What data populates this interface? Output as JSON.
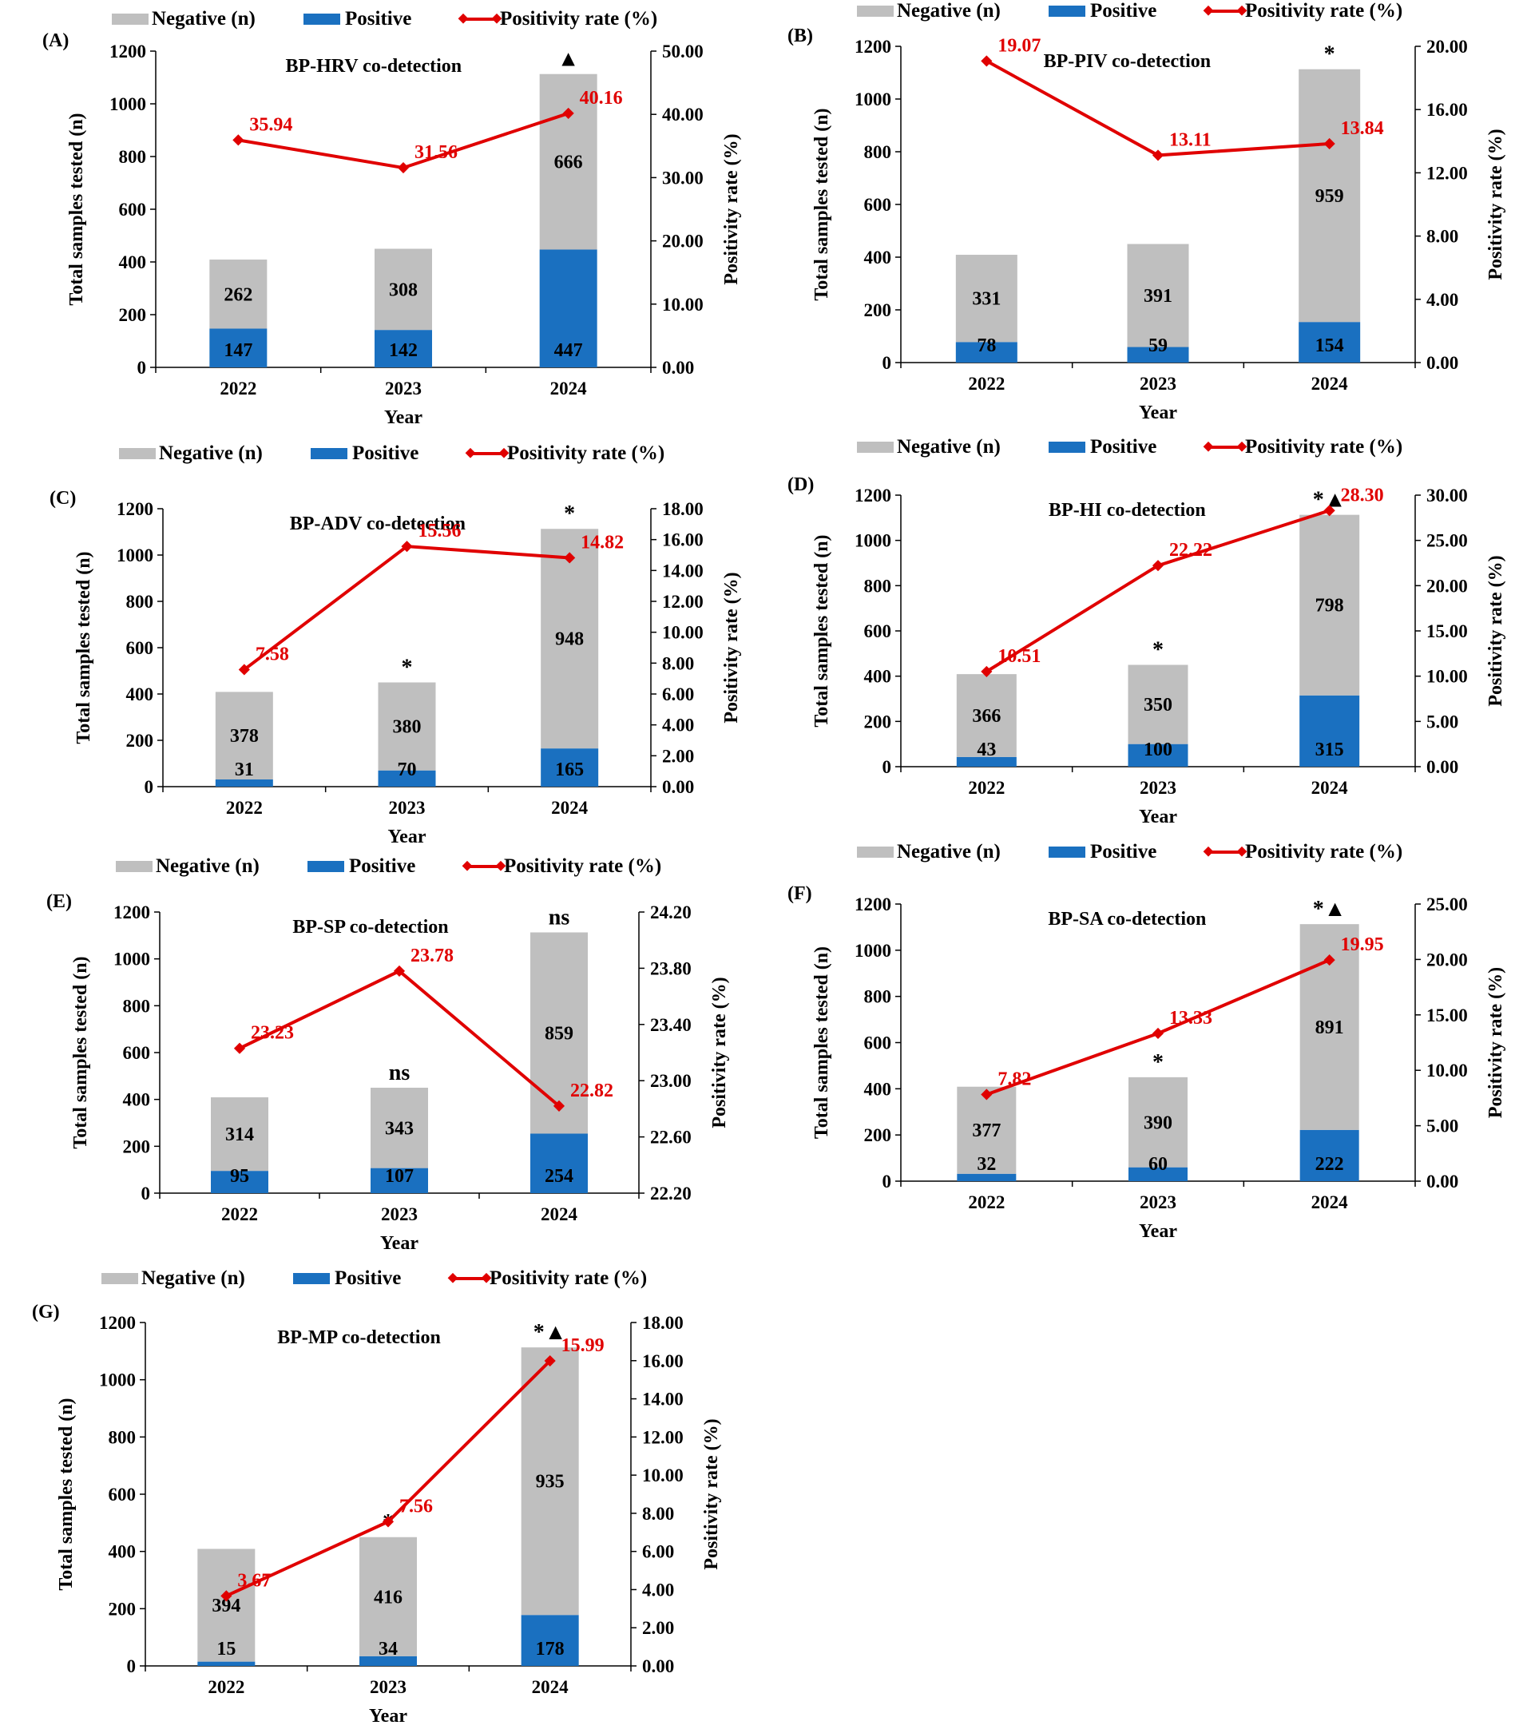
{
  "chart_data": [
    {
      "type": "bar",
      "panel": "(A)",
      "title": "BP-HRV co-detection",
      "legend": {
        "negative": "Negative (n)",
        "positive": "Positive",
        "rate": "Positivity rate (%)"
      },
      "xlabel": "Year",
      "ylabel": "Total samples tested (n)",
      "y2label": "Positivity rate (%)",
      "categories": [
        "2022",
        "2023",
        "2024"
      ],
      "series": [
        {
          "name": "Positive",
          "values": [
            147,
            142,
            447
          ],
          "color": "#1a70c0"
        },
        {
          "name": "Negative (n)",
          "values": [
            262,
            308,
            666
          ],
          "color": "#bfbfbf"
        },
        {
          "name": "Positivity rate (%)",
          "values": [
            35.94,
            31.56,
            40.16
          ],
          "labels": [
            "35.94",
            "31.56",
            "40.16"
          ],
          "color": "#e00000"
        }
      ],
      "ylim": [
        0,
        1200
      ],
      "yticks": [
        "0",
        "200",
        "400",
        "600",
        "800",
        "1000",
        "1200"
      ],
      "y2lim": [
        0,
        50
      ],
      "y2ticks": [
        "0.00",
        "10.00",
        "20.00",
        "30.00",
        "40.00",
        "50.00"
      ],
      "annotations": [
        "",
        "",
        "▲"
      ]
    },
    {
      "type": "bar",
      "panel": "(B)",
      "title": "BP-PIV co-detection",
      "legend": {
        "negative": "Negative (n)",
        "positive": "Positive",
        "rate": "Positivity rate (%)"
      },
      "xlabel": "Year",
      "ylabel": "Total samples tested (n)",
      "y2label": "Positivity rate (%)",
      "categories": [
        "2022",
        "2023",
        "2024"
      ],
      "series": [
        {
          "name": "Positive",
          "values": [
            78,
            59,
            154
          ],
          "color": "#1a70c0"
        },
        {
          "name": "Negative (n)",
          "values": [
            331,
            391,
            959
          ],
          "color": "#bfbfbf"
        },
        {
          "name": "Positivity rate (%)",
          "values": [
            19.07,
            13.11,
            13.84
          ],
          "labels": [
            "19.07",
            "13.11",
            "13.84"
          ],
          "color": "#e00000"
        }
      ],
      "ylim": [
        0,
        1200
      ],
      "yticks": [
        "0",
        "200",
        "400",
        "600",
        "800",
        "1000",
        "1200"
      ],
      "y2lim": [
        0,
        20
      ],
      "y2ticks": [
        "0.00",
        "4.00",
        "8.00",
        "12.00",
        "16.00",
        "20.00"
      ],
      "annotations": [
        "",
        "",
        "*"
      ]
    },
    {
      "type": "bar",
      "panel": "(C)",
      "title": "BP-ADV co-detection",
      "legend": {
        "negative": "Negative (n)",
        "positive": "Positive",
        "rate": "Positivity rate (%)"
      },
      "xlabel": "Year",
      "ylabel": "Total samples tested (n)",
      "y2label": "Positivity rate (%)",
      "categories": [
        "2022",
        "2023",
        "2024"
      ],
      "series": [
        {
          "name": "Positive",
          "values": [
            31,
            70,
            165
          ],
          "color": "#1a70c0"
        },
        {
          "name": "Negative (n)",
          "values": [
            378,
            380,
            948
          ],
          "color": "#bfbfbf"
        },
        {
          "name": "Positivity rate (%)",
          "values": [
            7.58,
            15.56,
            14.82
          ],
          "labels": [
            "7.58",
            "15.56",
            "14.82"
          ],
          "color": "#e00000"
        }
      ],
      "ylim": [
        0,
        1200
      ],
      "yticks": [
        "0",
        "200",
        "400",
        "600",
        "800",
        "1000",
        "1200"
      ],
      "y2lim": [
        0,
        18
      ],
      "y2ticks": [
        "0.00",
        "2.00",
        "4.00",
        "6.00",
        "8.00",
        "10.00",
        "12.00",
        "14.00",
        "16.00",
        "18.00"
      ],
      "annotations": [
        "",
        "*",
        "*"
      ]
    },
    {
      "type": "bar",
      "panel": "(D)",
      "title": "BP-HI co-detection",
      "legend": {
        "negative": "Negative (n)",
        "positive": "Positive",
        "rate": "Positivity rate (%)"
      },
      "xlabel": "Year",
      "ylabel": "Total samples tested (n)",
      "y2label": "Positivity rate (%)",
      "categories": [
        "2022",
        "2023",
        "2024"
      ],
      "series": [
        {
          "name": "Positive",
          "values": [
            43,
            100,
            315
          ],
          "color": "#1a70c0"
        },
        {
          "name": "Negative (n)",
          "values": [
            366,
            350,
            798
          ],
          "color": "#bfbfbf"
        },
        {
          "name": "Positivity rate (%)",
          "values": [
            10.51,
            22.22,
            28.3
          ],
          "labels": [
            "10.51",
            "22.22",
            "28.30"
          ],
          "color": "#e00000"
        }
      ],
      "ylim": [
        0,
        1200
      ],
      "yticks": [
        "0",
        "200",
        "400",
        "600",
        "800",
        "1000",
        "1200"
      ],
      "y2lim": [
        0,
        30
      ],
      "y2ticks": [
        "0.00",
        "5.00",
        "10.00",
        "15.00",
        "20.00",
        "25.00",
        "30.00"
      ],
      "annotations": [
        "",
        "*",
        "*▲"
      ]
    },
    {
      "type": "bar",
      "panel": "(E)",
      "title": "BP-SP co-detection",
      "legend": {
        "negative": "Negative (n)",
        "positive": "Positive",
        "rate": "Positivity rate (%)"
      },
      "xlabel": "Year",
      "ylabel": "Total samples tested (n)",
      "y2label": "Positivity rate (%)",
      "categories": [
        "2022",
        "2023",
        "2024"
      ],
      "series": [
        {
          "name": "Positive",
          "values": [
            95,
            107,
            254
          ],
          "color": "#1a70c0"
        },
        {
          "name": "Negative (n)",
          "values": [
            314,
            343,
            859
          ],
          "color": "#bfbfbf"
        },
        {
          "name": "Positivity rate (%)",
          "values": [
            23.23,
            23.78,
            22.82
          ],
          "labels": [
            "23.23",
            "23.78",
            "22.82"
          ],
          "color": "#e00000"
        }
      ],
      "ylim": [
        0,
        1200
      ],
      "yticks": [
        "0",
        "200",
        "400",
        "600",
        "800",
        "1000",
        "1200"
      ],
      "y2lim": [
        22.2,
        24.2
      ],
      "y2ticks": [
        "22.20",
        "22.60",
        "23.00",
        "23.40",
        "23.80",
        "24.20"
      ],
      "annotations": [
        "",
        "ns",
        "ns"
      ]
    },
    {
      "type": "bar",
      "panel": "(F)",
      "title": "BP-SA co-detection",
      "legend": {
        "negative": "Negative (n)",
        "positive": "Positive",
        "rate": "Positivity rate (%)"
      },
      "xlabel": "Year",
      "ylabel": "Total samples tested (n)",
      "y2label": "Positivity rate (%)",
      "categories": [
        "2022",
        "2023",
        "2024"
      ],
      "series": [
        {
          "name": "Positive",
          "values": [
            32,
            60,
            222
          ],
          "color": "#1a70c0"
        },
        {
          "name": "Negative (n)",
          "values": [
            377,
            390,
            891
          ],
          "color": "#bfbfbf"
        },
        {
          "name": "Positivity rate (%)",
          "values": [
            7.82,
            13.33,
            19.95
          ],
          "labels": [
            "7.82",
            "13.33",
            "19.95"
          ],
          "color": "#e00000"
        }
      ],
      "ylim": [
        0,
        1200
      ],
      "yticks": [
        "0",
        "200",
        "400",
        "600",
        "800",
        "1000",
        "1200"
      ],
      "y2lim": [
        0,
        25
      ],
      "y2ticks": [
        "0.00",
        "5.00",
        "10.00",
        "15.00",
        "20.00",
        "25.00"
      ],
      "annotations": [
        "",
        "*",
        "*▲"
      ]
    },
    {
      "type": "bar",
      "panel": "(G)",
      "title": "BP-MP co-detection",
      "legend": {
        "negative": "Negative (n)",
        "positive": "Positive",
        "rate": "Positivity rate (%)"
      },
      "xlabel": "Year",
      "ylabel": "Total samples tested (n)",
      "y2label": "Positivity rate (%)",
      "categories": [
        "2022",
        "2023",
        "2024"
      ],
      "series": [
        {
          "name": "Positive",
          "values": [
            15,
            34,
            178
          ],
          "color": "#1a70c0"
        },
        {
          "name": "Negative (n)",
          "values": [
            394,
            416,
            935
          ],
          "color": "#bfbfbf"
        },
        {
          "name": "Positivity rate (%)",
          "values": [
            3.67,
            7.56,
            15.99
          ],
          "labels": [
            "3.67",
            "7.56",
            "15.99"
          ],
          "color": "#e00000"
        }
      ],
      "ylim": [
        0,
        1200
      ],
      "yticks": [
        "0",
        "200",
        "400",
        "600",
        "800",
        "1000",
        "1200"
      ],
      "y2lim": [
        0,
        18
      ],
      "y2ticks": [
        "0.00",
        "2.00",
        "4.00",
        "6.00",
        "8.00",
        "10.00",
        "12.00",
        "14.00",
        "16.00",
        "18.00"
      ],
      "annotations": [
        "",
        "*",
        "*▲"
      ]
    }
  ]
}
